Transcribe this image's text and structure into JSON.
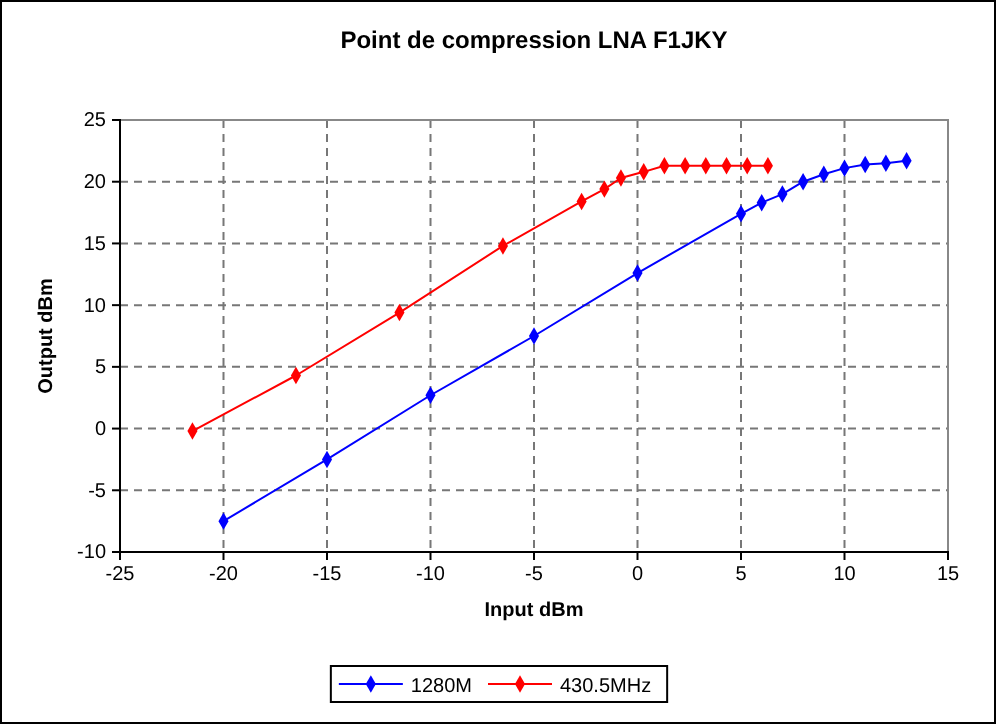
{
  "chart_data": {
    "type": "line",
    "title": "Point de compression LNA F1JKY",
    "xlabel": "Input dBm",
    "ylabel": "Output dBm",
    "xlim": [
      -25,
      15
    ],
    "xticks": [
      -25,
      -20,
      -15,
      -10,
      -5,
      0,
      5,
      10,
      15
    ],
    "ylim": [
      -10,
      25
    ],
    "yticks": [
      -10,
      -5,
      0,
      5,
      10,
      15,
      20,
      25
    ],
    "grid": true,
    "legend": "bottom",
    "marker": "diamond",
    "line_style": "solid",
    "series": [
      {
        "name": "1280M",
        "color": "#0000ff",
        "x": [
          -20,
          -15,
          -10,
          -5,
          0,
          5,
          6,
          7,
          8,
          9,
          10,
          11,
          12,
          13
        ],
        "values": [
          -7.5,
          -2.5,
          2.7,
          7.5,
          12.6,
          17.4,
          18.3,
          19.0,
          20.0,
          20.6,
          21.1,
          21.4,
          21.5,
          21.7
        ]
      },
      {
        "name": "430.5MHz",
        "color": "#ff0000",
        "x": [
          -21.5,
          -16.5,
          -11.5,
          -6.5,
          -2.7,
          -1.6,
          -0.8,
          0.3,
          1.3,
          2.3,
          3.3,
          4.3,
          5.3,
          6.3
        ],
        "values": [
          -0.2,
          4.3,
          9.4,
          14.8,
          18.4,
          19.4,
          20.3,
          20.8,
          21.3,
          21.3,
          21.3,
          21.3,
          21.3,
          21.3
        ]
      }
    ]
  }
}
